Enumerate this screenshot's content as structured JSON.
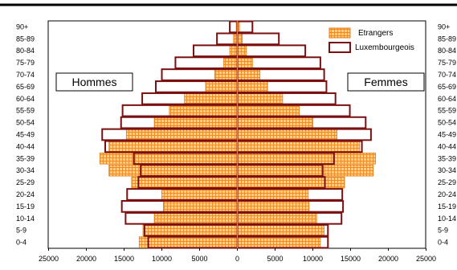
{
  "chart_data": {
    "type": "bar",
    "orientation": "horizontal",
    "subtype": "population-pyramid",
    "categories": [
      "0-4",
      "5-9",
      "10-14",
      "15-19",
      "20-24",
      "25-29",
      "30-34",
      "35-39",
      "40-44",
      "45-49",
      "50-54",
      "55-59",
      "60-64",
      "65-69",
      "70-74",
      "75-79",
      "80-84",
      "85-89",
      "90+"
    ],
    "xlim": [
      -25000,
      25000
    ],
    "xticks": [
      "25000",
      "20000",
      "15000",
      "10000",
      "5000",
      "0",
      "5000",
      "10000",
      "15000",
      "20000",
      "25000"
    ],
    "sides": {
      "left": "Hommes",
      "right": "Femmes"
    },
    "series": [
      {
        "name": "Etrangers",
        "color": "#f8b96a",
        "style": "hatched-fill",
        "left": [
          13000,
          12500,
          11000,
          9800,
          10000,
          14000,
          17000,
          18200,
          17000,
          14700,
          11000,
          9000,
          7000,
          4200,
          3000,
          1800,
          1000,
          500,
          150
        ],
        "right": [
          11000,
          11500,
          10500,
          9500,
          9400,
          14200,
          18000,
          18300,
          16200,
          13200,
          10000,
          8200,
          6000,
          4000,
          3000,
          2000,
          1200,
          650,
          280
        ]
      },
      {
        "name": "Luxembourgeois",
        "color": "#7a1010",
        "style": "outline",
        "left": [
          11800,
          12300,
          14800,
          15300,
          14600,
          13100,
          12800,
          13700,
          17500,
          17900,
          15400,
          15200,
          12600,
          10800,
          10000,
          8200,
          5800,
          2700,
          1000
        ],
        "right": [
          12000,
          12000,
          13800,
          14000,
          13900,
          11600,
          11300,
          12800,
          16500,
          17700,
          17000,
          14900,
          13000,
          11800,
          11500,
          11000,
          9000,
          5500,
          2000
        ]
      }
    ],
    "legend": {
      "position": "top-right",
      "entries": [
        "Etrangers",
        "Luxembourgeois"
      ]
    }
  }
}
